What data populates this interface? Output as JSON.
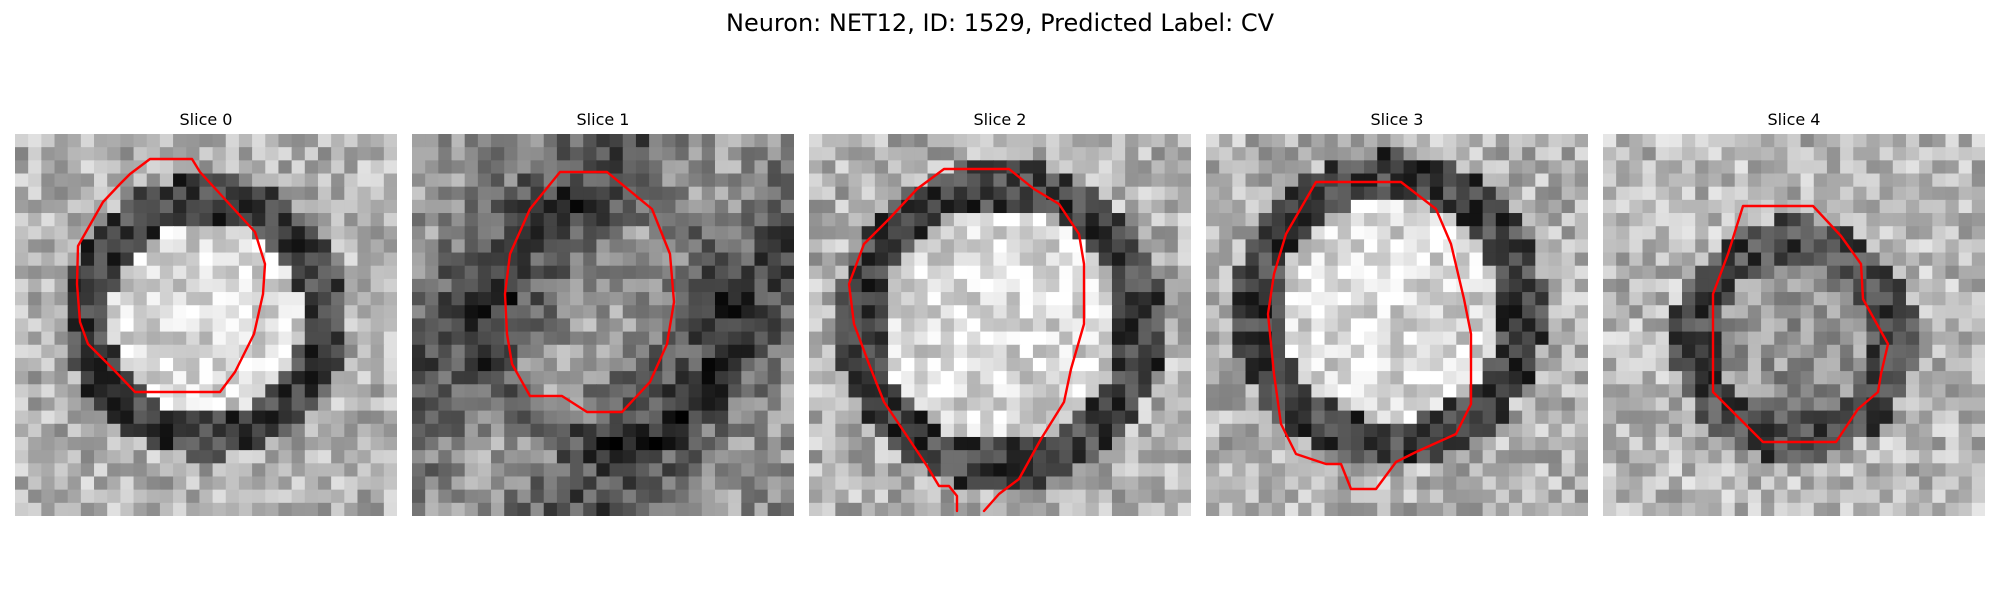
{
  "figure": {
    "title": "Neuron: NET12, ID: 1529, Predicted Label: CV"
  },
  "contour_color": "#ff0000",
  "panels": [
    {
      "title": "Slice 0",
      "pattern": "bright-core-dark-ring"
    },
    {
      "title": "Slice 1",
      "pattern": "dark-core-noisy"
    },
    {
      "title": "Slice 2",
      "pattern": "bright-core-dark-ring"
    },
    {
      "title": "Slice 3",
      "pattern": "bright-core-dark-ring"
    },
    {
      "title": "Slice 4",
      "pattern": "mid-core-dark-ring"
    }
  ]
}
